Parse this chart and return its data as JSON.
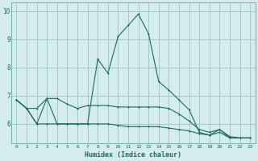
{
  "xlabel": "Humidex (Indice chaleur)",
  "background_color": "#d4ecec",
  "grid_color": "#a0c8c8",
  "line_color": "#1a6b5a",
  "xlim": [
    -0.5,
    23.5
  ],
  "ylim": [
    5.3,
    10.3
  ],
  "yticks": [
    6,
    7,
    8,
    9,
    10
  ],
  "xticks": [
    0,
    1,
    2,
    3,
    4,
    5,
    6,
    7,
    8,
    9,
    10,
    11,
    12,
    13,
    14,
    15,
    16,
    17,
    18,
    19,
    20,
    21,
    22,
    23
  ],
  "series1_x": [
    0,
    1,
    2,
    3,
    4,
    5,
    6,
    7,
    8,
    9,
    10,
    11,
    12,
    13,
    14,
    15,
    16,
    17,
    18,
    19,
    20,
    21,
    22,
    23
  ],
  "series1_y": [
    6.85,
    6.55,
    6.0,
    6.9,
    6.0,
    6.0,
    6.0,
    6.0,
    8.3,
    7.8,
    9.1,
    9.5,
    9.9,
    9.2,
    7.5,
    7.2,
    6.85,
    6.5,
    5.7,
    5.6,
    5.8,
    5.5,
    5.5,
    5.5
  ],
  "series2_x": [
    0,
    1,
    2,
    3,
    4,
    5,
    6,
    7,
    8,
    9,
    10,
    11,
    12,
    13,
    14,
    15,
    16,
    17,
    18,
    19,
    20,
    21,
    22,
    23
  ],
  "series2_y": [
    6.85,
    6.55,
    6.55,
    6.9,
    6.9,
    6.7,
    6.55,
    6.65,
    6.65,
    6.65,
    6.6,
    6.6,
    6.6,
    6.6,
    6.6,
    6.55,
    6.35,
    6.1,
    5.8,
    5.7,
    5.8,
    5.55,
    5.5,
    5.5
  ],
  "series3_x": [
    0,
    1,
    2,
    3,
    4,
    5,
    6,
    7,
    8,
    9,
    10,
    11,
    12,
    13,
    14,
    15,
    16,
    17,
    18,
    19,
    20,
    21,
    22,
    23
  ],
  "series3_y": [
    6.85,
    6.55,
    6.0,
    6.0,
    6.0,
    6.0,
    6.0,
    6.0,
    6.0,
    6.0,
    5.95,
    5.9,
    5.9,
    5.9,
    5.9,
    5.85,
    5.8,
    5.75,
    5.65,
    5.6,
    5.7,
    5.5,
    5.5,
    5.5
  ]
}
